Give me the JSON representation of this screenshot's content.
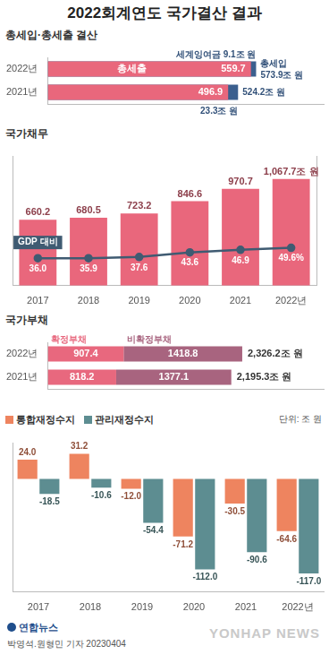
{
  "title": "2022회계연도 국가결산 결과",
  "source": "연합뉴스",
  "credit": "박영석.원형민 기자 20230404",
  "watermark": "YONHAP NEWS",
  "chart_data": [
    {
      "type": "bar",
      "title": "총세입·총세출 결산",
      "orientation": "horizontal",
      "categories": [
        "2022년",
        "2021년"
      ],
      "series": [
        {
          "name": "총세출",
          "color": "#e9677c",
          "values": [
            559.7,
            496.9
          ]
        },
        {
          "name": "총세입",
          "color": "#3b5f8e",
          "values": [
            573.9,
            524.2
          ],
          "value_labels": [
            "573.9조 원",
            "524.2조 원"
          ]
        }
      ],
      "surplus": {
        "name": "세계잉여금",
        "values": [
          9.1,
          23.3
        ],
        "value_labels": [
          "9.1조 원",
          "23.3조 원"
        ]
      },
      "xlim": [
        0,
        760
      ],
      "data_labels": true,
      "tick_labels": "y",
      "grid": false,
      "stacked": false
    },
    {
      "type": "bar",
      "title": "국가채무",
      "categories": [
        "2017",
        "2018",
        "2019",
        "2020",
        "2021",
        "2022년"
      ],
      "series": [
        {
          "name": "국가채무",
          "type": "bar",
          "color": "#e9677c",
          "values": [
            660.2,
            680.5,
            723.2,
            846.6,
            970.7,
            1067.7
          ],
          "value_labels": [
            "660.2",
            "680.5",
            "723.2",
            "846.6",
            "970.7",
            "1,067.7조 원"
          ]
        },
        {
          "name": "GDP 대비",
          "type": "line",
          "axis": "y2",
          "color": "#3f5b72",
          "marker": "circle",
          "values": [
            36.0,
            35.9,
            37.6,
            43.6,
            46.9,
            49.6
          ],
          "value_labels": [
            "36.0",
            "35.9",
            "37.6",
            "43.6",
            "46.9",
            "49.6%"
          ]
        }
      ],
      "ylim": [
        0,
        1300
      ],
      "y2lim": [
        0,
        170
      ],
      "data_labels": true,
      "tick_labels": "x",
      "grid": false
    },
    {
      "type": "bar",
      "title": "국가부채",
      "orientation": "horizontal",
      "stacked": true,
      "categories": [
        "2022년",
        "2021년"
      ],
      "series": [
        {
          "name": "확정부채",
          "color": "#e8687e",
          "values": [
            907.4,
            818.2
          ]
        },
        {
          "name": "비확정부채",
          "color": "#a8647f",
          "values": [
            1418.8,
            1377.1
          ]
        }
      ],
      "totals": [
        2326.2,
        2195.3
      ],
      "total_labels": [
        "2,326.2조 원",
        "2,195.3조 원"
      ],
      "xlim": [
        0,
        3300
      ],
      "data_labels": true,
      "tick_labels": "y",
      "grid": false
    },
    {
      "type": "bar",
      "unit": "단위: 조 원",
      "legend": "top",
      "categories": [
        "2017",
        "2018",
        "2019",
        "2020",
        "2021",
        "2022년"
      ],
      "series": [
        {
          "name": "통합재정수지",
          "color": "#ee845f",
          "values": [
            24.0,
            31.2,
            -12.0,
            -71.2,
            -30.5,
            -64.6
          ],
          "value_labels": [
            "24.0",
            "31.2",
            "-12.0",
            "-71.2",
            "-30.5",
            "-64.6"
          ]
        },
        {
          "name": "관리재정수지",
          "color": "#5d8d91",
          "values": [
            -18.5,
            -10.6,
            -54.4,
            -112.0,
            -90.6,
            -117.0
          ],
          "value_labels": [
            "-18.5",
            "-10.6",
            "-54.4",
            "-112.0",
            "-90.6",
            "-117.0"
          ]
        }
      ],
      "ylim": [
        -140,
        45
      ],
      "data_labels": true,
      "tick_labels": "x",
      "grid": false
    }
  ]
}
